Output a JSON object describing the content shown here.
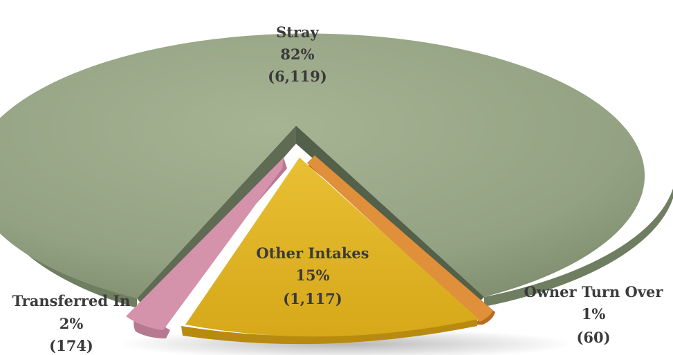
{
  "chart_data": {
    "type": "pie",
    "style": "3d-exploded",
    "slices": [
      {
        "category": "Stray",
        "percent_label": "82%",
        "count_label": "(6,119)",
        "value": 6119,
        "color": "#94a382"
      },
      {
        "category": "Other Intakes",
        "percent_label": "15%",
        "count_label": "(1,117)",
        "value": 1117,
        "color": "#dcae1e"
      },
      {
        "category": "Owner Turn Over",
        "percent_label": "1%",
        "count_label": "(60)",
        "value": 60,
        "color": "#df8c36"
      },
      {
        "category": "Transferred In",
        "percent_label": "2%",
        "count_label": "(174)",
        "value": 174,
        "color": "#d492ab"
      }
    ],
    "legend": "none",
    "background": "#ffffff"
  }
}
